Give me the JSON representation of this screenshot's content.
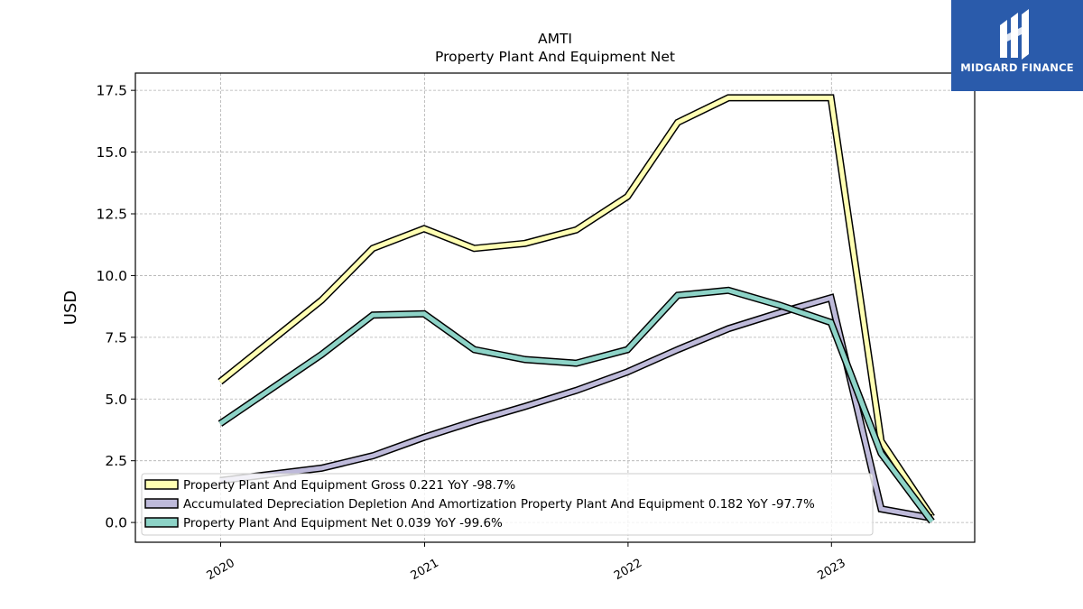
{
  "chart_data": {
    "type": "line",
    "title": "AMTI",
    "subtitle": "Property Plant And Equipment Net",
    "ylabel": "USD",
    "xlabel": "",
    "ylim": [
      -0.8,
      18.2
    ],
    "xlim": [
      "2019-08-01",
      "2023-09-15"
    ],
    "yticks": [
      0.0,
      2.5,
      5.0,
      7.5,
      10.0,
      12.5,
      15.0,
      17.5
    ],
    "ytick_labels": [
      "0.0",
      "2.5",
      "5.0",
      "7.5",
      "10.0",
      "12.5",
      "15.0",
      "17.5"
    ],
    "xticks": [
      "2020-01-01",
      "2021-01-01",
      "2022-01-01",
      "2023-01-01"
    ],
    "xtick_labels": [
      "2020",
      "2021",
      "2022",
      "2023"
    ],
    "grid": true,
    "legend_position": "lower-left",
    "series": [
      {
        "name": "Property Plant And Equipment Gross",
        "legend_label": "Property Plant And Equipment Gross  0.221 YoY -98.7%",
        "color": "#ffffb3",
        "x": [
          "2019-12-31",
          "2020-06-30",
          "2020-09-30",
          "2020-12-31",
          "2021-03-31",
          "2021-06-30",
          "2021-09-30",
          "2021-12-31",
          "2022-03-31",
          "2022-06-30",
          "2022-09-30",
          "2022-12-31",
          "2023-03-31",
          "2023-06-30"
        ],
        "y": [
          5.7,
          9.0,
          11.1,
          11.9,
          11.1,
          11.3,
          11.85,
          13.2,
          16.2,
          17.2,
          17.2,
          17.2,
          3.3,
          0.22
        ]
      },
      {
        "name": "Accumulated Depreciation Depletion And Amortization Property Plant And Equipment",
        "legend_label": "Accumulated Depreciation Depletion And Amortization Property Plant And Equipment  0.182 YoY -97.7%",
        "color": "#bebada",
        "x": [
          "2019-12-31",
          "2020-06-30",
          "2020-09-30",
          "2020-12-31",
          "2021-03-31",
          "2021-06-30",
          "2021-09-30",
          "2021-12-31",
          "2022-03-31",
          "2022-06-30",
          "2022-09-30",
          "2022-12-31",
          "2023-03-31",
          "2023-06-30"
        ],
        "y": [
          1.7,
          2.2,
          2.7,
          3.45,
          4.1,
          4.7,
          5.35,
          6.1,
          7.0,
          7.85,
          8.5,
          9.1,
          0.55,
          0.18
        ]
      },
      {
        "name": "Property Plant And Equipment Net",
        "legend_label": "Property Plant And Equipment Net  0.039 YoY -99.6%",
        "color": "#8dd3c7",
        "x": [
          "2019-12-31",
          "2020-06-30",
          "2020-09-30",
          "2020-12-31",
          "2021-03-31",
          "2021-06-30",
          "2021-09-30",
          "2021-12-31",
          "2022-03-31",
          "2022-06-30",
          "2022-09-30",
          "2022-12-31",
          "2023-03-31",
          "2023-06-30"
        ],
        "y": [
          4.0,
          6.8,
          8.4,
          8.45,
          7.0,
          6.6,
          6.45,
          7.0,
          9.2,
          9.4,
          8.8,
          8.1,
          2.8,
          0.04
        ]
      }
    ]
  },
  "logo": {
    "text": "MIDGARD FINANCE",
    "bg_color": "#2a5bab"
  }
}
